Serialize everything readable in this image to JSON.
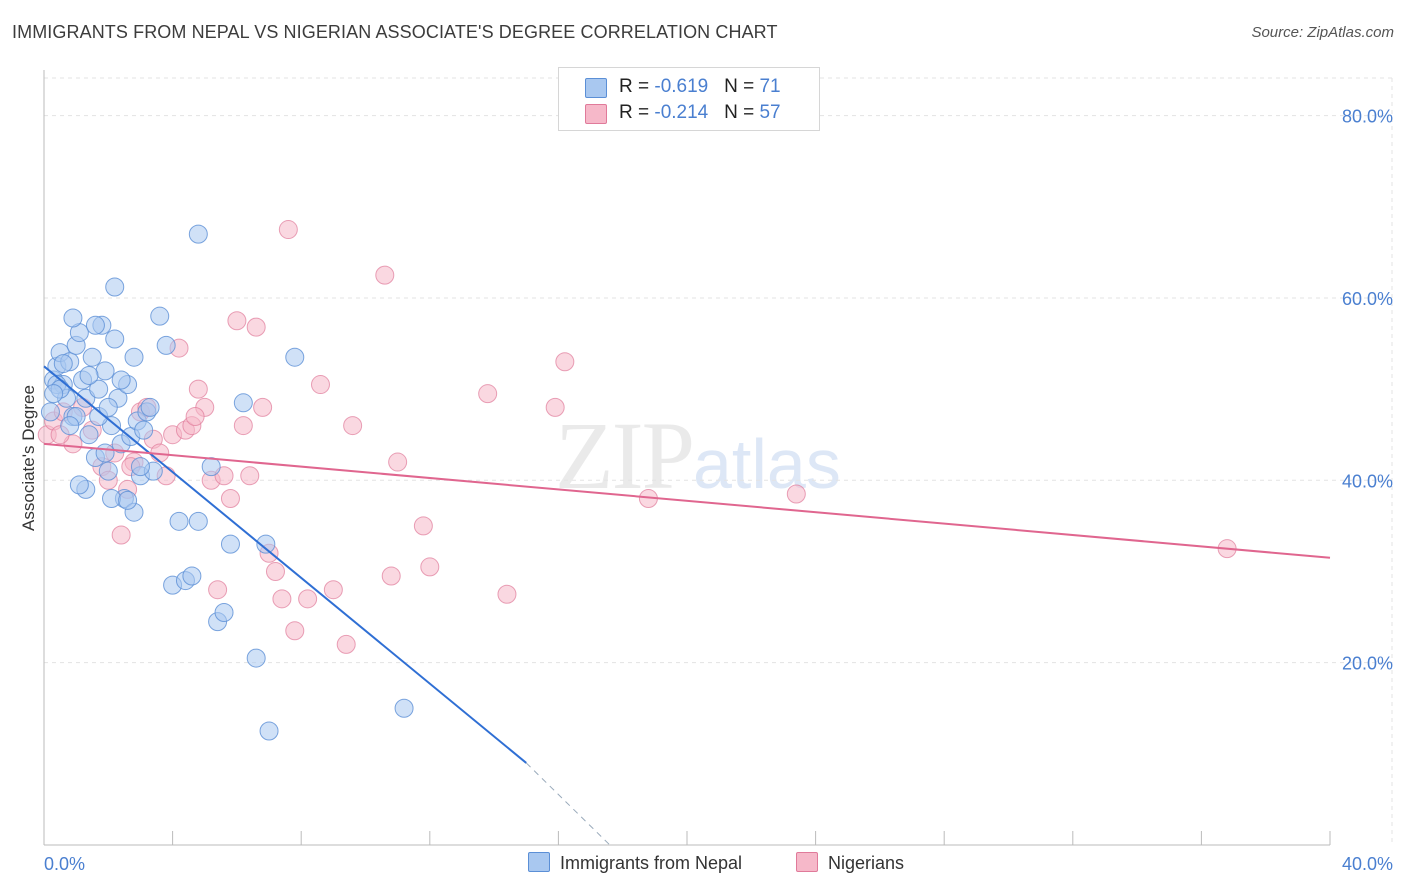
{
  "header": {
    "title": "IMMIGRANTS FROM NEPAL VS NIGERIAN ASSOCIATE'S DEGREE CORRELATION CHART",
    "source": "Source: ZipAtlas.com"
  },
  "watermark": {
    "zip": "ZIP",
    "atlas": "atlas"
  },
  "legend": {
    "rows": [
      {
        "r_label": "R = ",
        "r_value": "-0.619",
        "n_label": "N = ",
        "n_value": "71",
        "color": "#a9c8f0"
      },
      {
        "r_label": "R = ",
        "r_value": "-0.214",
        "n_label": "N = ",
        "n_value": "57",
        "color": "#f6b8c9"
      }
    ]
  },
  "bottom_legend": {
    "nepal": "Immigrants from Nepal",
    "nigerians": "Nigerians"
  },
  "colors": {
    "nepal_fill": "#a9c8f0",
    "nepal_stroke": "#5b8fd6",
    "nepal_line": "#2f6fd4",
    "nigeria_fill": "#f6b8c9",
    "nigeria_stroke": "#e07a9a",
    "nigeria_line": "#e0668f",
    "grid": "#e3e3e3",
    "axis_label": "#4a7fd0"
  },
  "chart_data": {
    "type": "scatter",
    "title": "IMMIGRANTS FROM NEPAL VS NIGERIAN ASSOCIATE'S DEGREE CORRELATION CHART",
    "xlabel": "",
    "ylabel": "Associate's Degree",
    "xlim": [
      0,
      40
    ],
    "ylim": [
      0,
      85
    ],
    "x_tick_labels": [
      "0.0%",
      "40.0%"
    ],
    "y_tick_labels": [
      "20.0%",
      "40.0%",
      "60.0%",
      "80.0%"
    ],
    "y_ticks": [
      20,
      40,
      60,
      80
    ],
    "grid": true,
    "legend_position": "top-center",
    "series": [
      {
        "name": "Immigrants from Nepal",
        "r": -0.619,
        "n": 71,
        "trend": {
          "x0": 0.0,
          "y0": 52.5,
          "x1": 15.0,
          "y1": 9.0,
          "dash_to_x": 17.6,
          "dash_to_y": 0.0
        },
        "points": [
          [
            0.2,
            47.5
          ],
          [
            0.3,
            51.0
          ],
          [
            0.4,
            52.5
          ],
          [
            0.5,
            54.0
          ],
          [
            0.6,
            50.5
          ],
          [
            0.7,
            49.0
          ],
          [
            0.8,
            53.0
          ],
          [
            0.9,
            47.0
          ],
          [
            1.0,
            54.8
          ],
          [
            1.1,
            56.2
          ],
          [
            1.2,
            51.0
          ],
          [
            1.3,
            49.0
          ],
          [
            1.4,
            45.0
          ],
          [
            1.5,
            53.5
          ],
          [
            1.6,
            42.5
          ],
          [
            1.7,
            50.0
          ],
          [
            1.8,
            57.0
          ],
          [
            1.9,
            52.0
          ],
          [
            2.0,
            41.0
          ],
          [
            2.1,
            46.0
          ],
          [
            2.2,
            55.5
          ],
          [
            2.3,
            49.0
          ],
          [
            2.4,
            44.0
          ],
          [
            2.5,
            38.0
          ],
          [
            2.6,
            50.5
          ],
          [
            2.7,
            44.8
          ],
          [
            2.8,
            36.5
          ],
          [
            2.9,
            46.5
          ],
          [
            3.0,
            40.5
          ],
          [
            3.2,
            47.5
          ],
          [
            3.4,
            41.0
          ],
          [
            3.6,
            58.0
          ],
          [
            3.8,
            54.8
          ],
          [
            4.0,
            28.5
          ],
          [
            4.2,
            35.5
          ],
          [
            4.4,
            29.0
          ],
          [
            4.6,
            29.5
          ],
          [
            4.8,
            67.0
          ],
          [
            5.2,
            41.5
          ],
          [
            5.4,
            24.5
          ],
          [
            5.6,
            25.5
          ],
          [
            5.8,
            33.0
          ],
          [
            6.2,
            48.5
          ],
          [
            6.6,
            20.5
          ],
          [
            7.0,
            12.5
          ],
          [
            6.9,
            33.0
          ],
          [
            7.8,
            53.5
          ],
          [
            11.2,
            15.0
          ],
          [
            0.4,
            50.5
          ],
          [
            0.6,
            52.8
          ],
          [
            0.9,
            57.8
          ],
          [
            1.3,
            39.0
          ],
          [
            1.7,
            47.0
          ],
          [
            2.1,
            38.0
          ],
          [
            2.4,
            51.0
          ],
          [
            2.8,
            53.5
          ],
          [
            3.1,
            45.5
          ],
          [
            0.5,
            50.0
          ],
          [
            1.0,
            47.0
          ],
          [
            1.6,
            57.0
          ],
          [
            1.9,
            43.0
          ],
          [
            2.2,
            61.2
          ],
          [
            3.3,
            48.0
          ],
          [
            0.8,
            46.0
          ],
          [
            1.4,
            51.5
          ],
          [
            2.6,
            37.8
          ],
          [
            1.1,
            39.5
          ],
          [
            4.8,
            35.5
          ],
          [
            0.3,
            49.5
          ],
          [
            2.0,
            48.0
          ],
          [
            3.0,
            41.5
          ]
        ]
      },
      {
        "name": "Nigerians",
        "r": -0.214,
        "n": 57,
        "trend": {
          "x0": 0.0,
          "y0": 44.0,
          "x1": 40.0,
          "y1": 31.5
        },
        "points": [
          [
            0.1,
            45.0
          ],
          [
            0.3,
            46.5
          ],
          [
            0.6,
            47.5
          ],
          [
            0.9,
            44.0
          ],
          [
            1.2,
            48.0
          ],
          [
            1.5,
            45.5
          ],
          [
            1.8,
            41.5
          ],
          [
            2.0,
            40.0
          ],
          [
            2.2,
            43.0
          ],
          [
            2.4,
            34.0
          ],
          [
            2.6,
            39.0
          ],
          [
            2.8,
            42.0
          ],
          [
            3.0,
            47.5
          ],
          [
            3.2,
            48.0
          ],
          [
            3.4,
            44.5
          ],
          [
            3.6,
            43.0
          ],
          [
            3.8,
            40.5
          ],
          [
            4.0,
            45.0
          ],
          [
            4.2,
            54.5
          ],
          [
            4.4,
            45.5
          ],
          [
            4.6,
            46.0
          ],
          [
            4.8,
            50.0
          ],
          [
            5.0,
            48.0
          ],
          [
            5.2,
            40.0
          ],
          [
            5.4,
            28.0
          ],
          [
            5.6,
            40.5
          ],
          [
            5.8,
            38.0
          ],
          [
            6.0,
            57.5
          ],
          [
            6.2,
            46.0
          ],
          [
            6.4,
            40.5
          ],
          [
            6.6,
            56.8
          ],
          [
            6.8,
            48.0
          ],
          [
            7.0,
            32.0
          ],
          [
            7.2,
            30.0
          ],
          [
            7.4,
            27.0
          ],
          [
            7.6,
            67.5
          ],
          [
            7.8,
            23.5
          ],
          [
            8.2,
            27.0
          ],
          [
            8.6,
            50.5
          ],
          [
            9.0,
            28.0
          ],
          [
            9.4,
            22.0
          ],
          [
            9.6,
            46.0
          ],
          [
            10.6,
            62.5
          ],
          [
            10.8,
            29.5
          ],
          [
            11.0,
            42.0
          ],
          [
            11.8,
            35.0
          ],
          [
            12.0,
            30.5
          ],
          [
            13.8,
            49.5
          ],
          [
            14.4,
            27.5
          ],
          [
            15.9,
            48.0
          ],
          [
            16.2,
            53.0
          ],
          [
            18.8,
            38.0
          ],
          [
            23.4,
            38.5
          ],
          [
            36.8,
            32.5
          ],
          [
            2.7,
            41.5
          ],
          [
            4.7,
            47.0
          ],
          [
            0.5,
            45.0
          ]
        ]
      }
    ]
  }
}
